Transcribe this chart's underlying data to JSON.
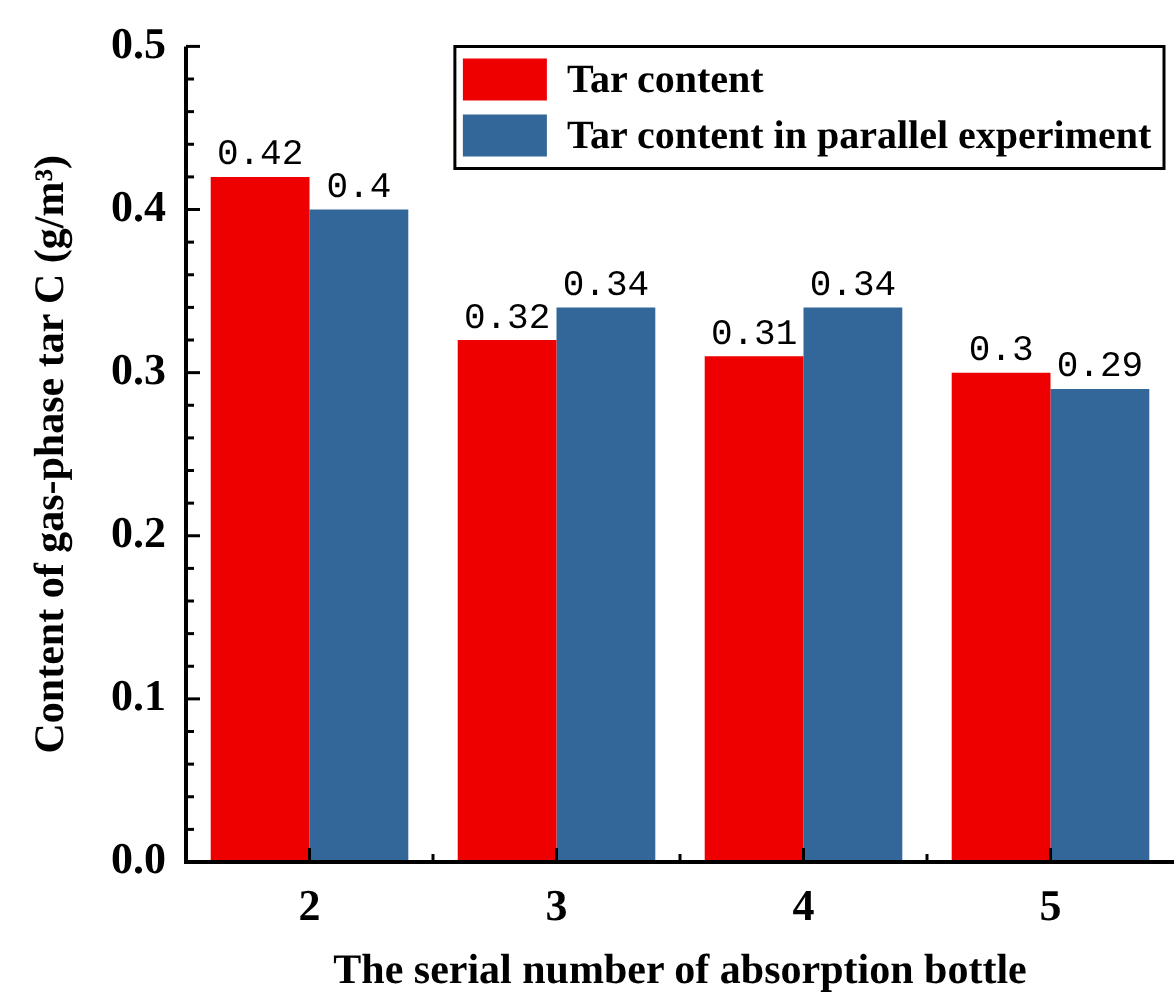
{
  "chart_data": {
    "type": "bar",
    "xlabel": "The serial number of absorption bottle",
    "ylabel": "Content of gas-phase tar C (g/m³)",
    "categories": [
      "2",
      "3",
      "4",
      "5"
    ],
    "series": [
      {
        "name": "Tar content",
        "color": "#ee0000",
        "values": [
          0.42,
          0.32,
          0.31,
          0.3
        ]
      },
      {
        "name": "Tar content in parallel experiment",
        "color": "#336699",
        "values": [
          0.4,
          0.34,
          0.34,
          0.29
        ]
      }
    ],
    "ylim": [
      0,
      0.5
    ],
    "yticks": [
      {
        "value": 0,
        "label": "0.0"
      },
      {
        "value": 0.02,
        "label": null
      },
      {
        "value": 0.04,
        "label": null
      },
      {
        "value": 0.06,
        "label": null
      },
      {
        "value": 0.08,
        "label": null
      },
      0.1,
      {
        "value": 0.12,
        "label": null
      },
      {
        "value": 0.14,
        "label": null
      },
      {
        "value": 0.16,
        "label": null
      },
      {
        "value": 0.18,
        "label": null
      },
      0.2,
      {
        "value": 0.22,
        "label": null
      },
      {
        "value": 0.24,
        "label": null
      },
      {
        "value": 0.26,
        "label": null
      },
      {
        "value": 0.28,
        "label": null
      },
      0.3,
      {
        "value": 0.32,
        "label": null
      },
      {
        "value": 0.34,
        "label": null
      },
      {
        "value": 0.36,
        "label": null
      },
      {
        "value": 0.38,
        "label": null
      },
      0.4,
      {
        "value": 0.42,
        "label": null
      },
      {
        "value": 0.44,
        "label": null
      },
      {
        "value": 0.46,
        "label": null
      },
      {
        "value": 0.48,
        "label": null
      },
      0.5
    ],
    "legend": "top right",
    "data_labels": true
  }
}
